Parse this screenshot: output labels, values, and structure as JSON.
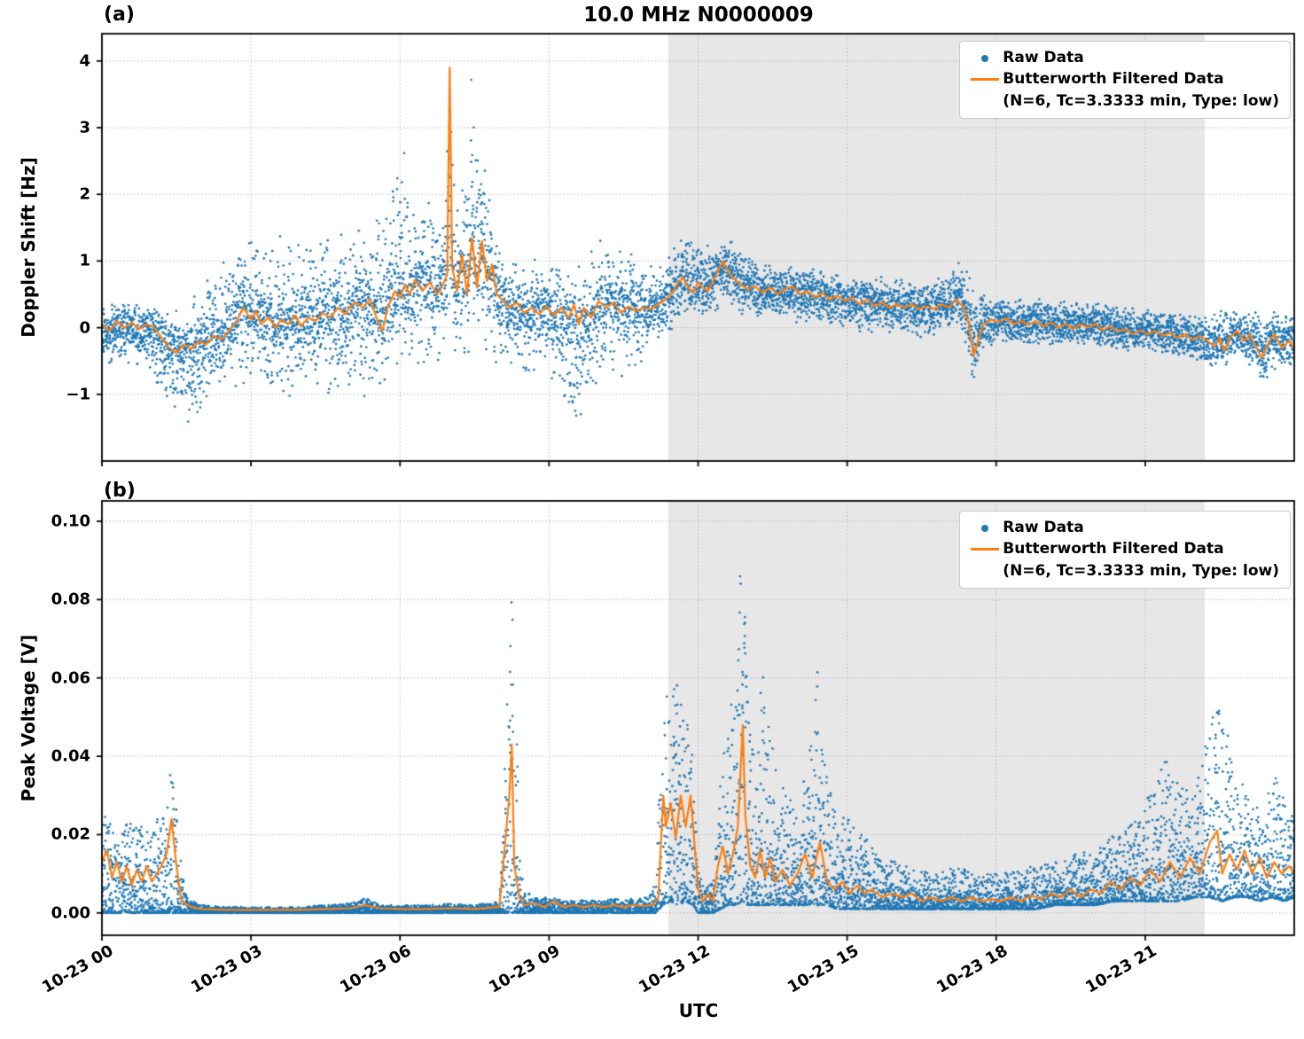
{
  "title": "10.0 MHz N0000009",
  "xlabel": "UTC",
  "legend": {
    "raw": "Raw Data",
    "filtered_1": "Butterworth Filtered Data",
    "filtered_2": "(N=6, Tc=3.3333 min, Type: low)"
  },
  "colors": {
    "raw": "#1f77b4",
    "filtered": "#ff7f0e",
    "shade": "#e7e7e7",
    "grid": "#b5b5b5",
    "frame": "#000000"
  },
  "chart_data": [
    {
      "type": "scatter",
      "panel": "a",
      "tag": "(a)",
      "ylabel": "Doppler Shift [Hz]",
      "xlim": [
        0,
        24
      ],
      "ylim": [
        -2.0,
        4.41
      ],
      "yticks": [
        4,
        3,
        2,
        1,
        0,
        -1
      ],
      "ytick_labels": [
        "4",
        "3",
        "2",
        "1",
        "0",
        "−1"
      ],
      "xticks": [
        0,
        3,
        6,
        9,
        12,
        15,
        18,
        21
      ],
      "xtick_labels": [
        "10-23 00",
        "10-23 03",
        "10-23 06",
        "10-23 09",
        "10-23 12",
        "10-23 15",
        "10-23 18",
        "10-23 21"
      ],
      "shaded_span": [
        11.4,
        22.2
      ],
      "grid": true,
      "legend_position": "upper right",
      "series_names": [
        "Raw Data",
        "Butterworth Filtered Data (N=6, Tc=3.3333 min, Type: low)"
      ],
      "filtered_tv": [
        0,
        0.05,
        0.15,
        -0.05,
        0.3,
        0.1,
        0.45,
        0,
        0.6,
        0.08,
        0.75,
        -0.02,
        0.9,
        0.05,
        1.05,
        0,
        1.2,
        -0.15,
        1.35,
        -0.3,
        1.5,
        -0.38,
        1.65,
        -0.25,
        1.8,
        -0.32,
        1.95,
        -0.2,
        2.1,
        -0.25,
        2.25,
        -0.12,
        2.4,
        -0.18,
        2.55,
        -0.05,
        2.7,
        0.08,
        2.85,
        0.3,
        3,
        0.12,
        3.1,
        0.25,
        3.2,
        0.05,
        3.35,
        0.15,
        3.5,
        0,
        3.6,
        0.12,
        3.75,
        0.05,
        3.9,
        0.18,
        4,
        0.02,
        4.15,
        0.15,
        4.3,
        0.1,
        4.45,
        0.22,
        4.6,
        0.15,
        4.75,
        0.3,
        4.9,
        0.2,
        5,
        0.32,
        5.1,
        0.38,
        5.25,
        0.3,
        5.4,
        0.42,
        5.55,
        0.1,
        5.65,
        -0.05,
        5.75,
        0.3,
        5.9,
        0.55,
        6,
        0.45,
        6.1,
        0.65,
        6.2,
        0.5,
        6.3,
        0.72,
        6.45,
        0.55,
        6.6,
        0.68,
        6.75,
        0.5,
        6.85,
        0.62,
        6.95,
        0.8,
        7,
        3.9,
        7.05,
        0.9,
        7.15,
        0.55,
        7.25,
        1.1,
        7.35,
        0.5,
        7.45,
        1.35,
        7.55,
        0.6,
        7.65,
        1.3,
        7.75,
        0.7,
        7.85,
        0.95,
        7.95,
        0.5,
        8.05,
        0.42,
        8.2,
        0.3,
        8.35,
        0.38,
        8.5,
        0.22,
        8.65,
        0.3,
        8.8,
        0.2,
        8.95,
        0.32,
        9.1,
        0.18,
        9.25,
        0.3,
        9.4,
        0.15,
        9.5,
        0.35,
        9.6,
        0.05,
        9.7,
        0.3,
        9.85,
        0.15,
        10,
        0.4,
        10.15,
        0.3,
        10.3,
        0.38,
        10.45,
        0.22,
        10.6,
        0.32,
        10.75,
        0.25,
        10.9,
        0.3,
        11.05,
        0.28,
        11.2,
        0.35,
        11.35,
        0.42,
        11.5,
        0.55,
        11.6,
        0.68,
        11.7,
        0.75,
        11.8,
        0.6,
        11.9,
        0.52,
        12,
        0.68,
        12.1,
        0.6,
        12.2,
        0.55,
        12.3,
        0.7,
        12.4,
        0.85,
        12.5,
        1,
        12.6,
        0.85,
        12.7,
        0.75,
        12.85,
        0.65,
        13,
        0.58,
        13.15,
        0.62,
        13.3,
        0.52,
        13.45,
        0.6,
        13.6,
        0.5,
        13.75,
        0.58,
        13.9,
        0.62,
        14.05,
        0.5,
        14.2,
        0.55,
        14.35,
        0.45,
        14.5,
        0.52,
        14.65,
        0.42,
        14.8,
        0.48,
        14.95,
        0.4,
        15.1,
        0.45,
        15.25,
        0.35,
        15.4,
        0.42,
        15.55,
        0.32,
        15.7,
        0.38,
        15.85,
        0.3,
        16,
        0.35,
        16.15,
        0.3,
        16.3,
        0.35,
        16.45,
        0.28,
        16.6,
        0.32,
        16.75,
        0.28,
        16.9,
        0.35,
        17.05,
        0.3,
        17.2,
        0.42,
        17.35,
        0.3,
        17.45,
        0.05,
        17.55,
        -0.42,
        17.65,
        -0.15,
        17.75,
        0.05,
        17.9,
        0.12,
        18.05,
        0.08,
        18.2,
        0.14,
        18.35,
        0.05,
        18.5,
        0.1,
        18.65,
        0.04,
        18.8,
        0.1,
        18.95,
        0.02,
        19.1,
        0.08,
        19.25,
        0,
        19.4,
        0.06,
        19.55,
        -0.02,
        19.7,
        0.05,
        19.85,
        0,
        20,
        0.06,
        20.15,
        -0.04,
        20.3,
        0.02,
        20.45,
        -0.06,
        20.6,
        -0.02,
        20.75,
        -0.1,
        20.9,
        -0.04,
        21.05,
        -0.1,
        21.2,
        -0.05,
        21.35,
        -0.12,
        21.5,
        -0.08,
        21.65,
        -0.15,
        21.8,
        -0.1,
        21.95,
        -0.18,
        22.1,
        -0.12,
        22.25,
        -0.2,
        22.4,
        -0.28,
        22.5,
        -0.15,
        22.6,
        -0.35,
        22.7,
        -0.15,
        22.85,
        -0.05,
        23,
        -0.2,
        23.1,
        -0.1,
        23.2,
        -0.25,
        23.35,
        -0.45,
        23.5,
        -0.2,
        23.6,
        -0.1,
        23.75,
        -0.3,
        23.9,
        -0.2,
        24,
        -0.3
      ],
      "raw_envelope_tlh": [
        0,
        -0.7,
        0.35,
        0.4,
        -0.5,
        0.4,
        0.8,
        -0.6,
        0.4,
        1.1,
        -0.9,
        0.35,
        1.4,
        -1.2,
        0.3,
        1.8,
        -1.5,
        0.5,
        2.1,
        -1.1,
        0.8,
        2.5,
        -1,
        1.1,
        2.9,
        -0.9,
        1.5,
        3.3,
        -1,
        1.3,
        3.7,
        -1.1,
        1.5,
        4.1,
        -0.9,
        1.5,
        4.5,
        -1,
        1.4,
        4.9,
        -1.1,
        1.5,
        5.3,
        -1.2,
        1.5,
        5.6,
        -0.9,
        1.7,
        5.9,
        -0.8,
        2.6,
        6.1,
        -0.9,
        2.7,
        6.3,
        -0.8,
        2.2,
        6.6,
        -0.6,
        1.9,
        6.9,
        -0.6,
        2.3,
        7,
        -0.5,
        3.93,
        7.1,
        -0.5,
        2.1,
        7.3,
        -0.6,
        2.5,
        7.45,
        -0.6,
        4.07,
        7.6,
        -0.5,
        3,
        7.8,
        -0.5,
        2.2,
        8,
        -0.7,
        1.4,
        8.2,
        -0.6,
        1.1,
        8.5,
        -0.8,
        1,
        8.8,
        -0.6,
        1.1,
        9.1,
        -0.9,
        1,
        9.4,
        -1.5,
        1.1,
        9.6,
        -1.75,
        1,
        9.8,
        -1.2,
        1.2,
        10,
        -0.8,
        1.3,
        10.2,
        -0.7,
        1.6,
        10.45,
        -0.9,
        1.3,
        10.7,
        -0.6,
        1.1,
        10.95,
        -0.5,
        1,
        11.2,
        -0.3,
        0.9,
        11.45,
        -0.1,
        1.1,
        11.7,
        0.1,
        1.5,
        11.9,
        0,
        1.55,
        12.1,
        0.1,
        1.3,
        12.35,
        0.2,
        1.2,
        12.55,
        0.3,
        1.45,
        12.8,
        0.2,
        1.25,
        13.1,
        0.1,
        1.05,
        13.5,
        0.1,
        0.95,
        13.9,
        0.05,
        0.95,
        14.3,
        0,
        0.9,
        14.7,
        0,
        0.85,
        15.1,
        -0.05,
        0.85,
        15.5,
        -0.1,
        0.8,
        15.9,
        -0.1,
        0.75,
        16.3,
        -0.15,
        0.7,
        16.7,
        -0.2,
        0.75,
        17,
        -0.1,
        0.8,
        17.3,
        0,
        1.1,
        17.5,
        -0.8,
        0.7,
        17.7,
        -0.35,
        0.55,
        18,
        -0.3,
        0.5,
        18.4,
        -0.25,
        0.5,
        18.8,
        -0.3,
        0.45,
        19.2,
        -0.3,
        0.4,
        19.6,
        -0.25,
        0.45,
        20,
        -0.3,
        0.4,
        20.4,
        -0.35,
        0.35,
        20.8,
        -0.35,
        0.3,
        21.2,
        -0.4,
        0.3,
        21.6,
        -0.45,
        0.25,
        22,
        -0.5,
        0.25,
        22.3,
        -0.7,
        0.2,
        22.6,
        -0.45,
        0.3,
        22.9,
        -0.55,
        0.25,
        23.2,
        -0.6,
        0.3,
        23.45,
        -0.85,
        0.25,
        23.7,
        -0.55,
        0.3,
        24,
        -0.65,
        0.2
      ]
    },
    {
      "type": "scatter",
      "panel": "b",
      "tag": "(b)",
      "ylabel": "Peak Voltage [V]",
      "xlim": [
        0,
        24
      ],
      "ylim": [
        -0.0057,
        0.1052
      ],
      "yticks": [
        0.1,
        0.08,
        0.06,
        0.04,
        0.02,
        0.0
      ],
      "ytick_labels": [
        "0.10",
        "0.08",
        "0.06",
        "0.04",
        "0.02",
        "0.00"
      ],
      "xticks": [
        0,
        3,
        6,
        9,
        12,
        15,
        18,
        21
      ],
      "xtick_labels": [
        "10-23 00",
        "10-23 03",
        "10-23 06",
        "10-23 09",
        "10-23 12",
        "10-23 15",
        "10-23 18",
        "10-23 21"
      ],
      "shaded_span": [
        11.4,
        22.2
      ],
      "grid": true,
      "legend_position": "upper right",
      "series_names": [
        "Raw Data",
        "Butterworth Filtered Data (N=6, Tc=3.3333 min, Type: low)"
      ],
      "filtered_tv": [
        0,
        0.013,
        0.1,
        0.016,
        0.2,
        0.009,
        0.3,
        0.013,
        0.4,
        0.008,
        0.5,
        0.012,
        0.6,
        0.007,
        0.7,
        0.011,
        0.8,
        0.008,
        0.9,
        0.012,
        1,
        0.008,
        1.1,
        0.01,
        1.2,
        0.012,
        1.3,
        0.015,
        1.4,
        0.024,
        1.5,
        0.012,
        1.6,
        0.003,
        1.8,
        0.0015,
        2,
        0.001,
        2.5,
        0.0008,
        3,
        0.0008,
        3.5,
        0.0008,
        4,
        0.0008,
        4.5,
        0.001,
        5,
        0.0012,
        5.3,
        0.002,
        5.6,
        0.0012,
        6,
        0.001,
        6.5,
        0.001,
        7,
        0.0012,
        7.5,
        0.001,
        8,
        0.0015,
        8.2,
        0.03,
        8.25,
        0.043,
        8.3,
        0.012,
        8.4,
        0.004,
        8.5,
        0.002,
        8.7,
        0.0025,
        8.9,
        0.0015,
        9.1,
        0.003,
        9.3,
        0.0015,
        9.5,
        0.002,
        9.7,
        0.0015,
        9.9,
        0.002,
        10.1,
        0.0015,
        10.3,
        0.002,
        10.5,
        0.0015,
        10.7,
        0.002,
        10.9,
        0.0018,
        11.1,
        0.002,
        11.2,
        0.004,
        11.3,
        0.03,
        11.35,
        0.022,
        11.45,
        0.028,
        11.55,
        0.019,
        11.65,
        0.03,
        11.75,
        0.022,
        11.85,
        0.03,
        11.95,
        0.014,
        12,
        0.006,
        12.1,
        0.003,
        12.2,
        0.005,
        12.3,
        0.003,
        12.4,
        0.012,
        12.5,
        0.017,
        12.6,
        0.01,
        12.7,
        0.015,
        12.8,
        0.022,
        12.9,
        0.048,
        12.95,
        0.025,
        13.05,
        0.012,
        13.15,
        0.009,
        13.25,
        0.016,
        13.35,
        0.009,
        13.45,
        0.014,
        13.55,
        0.008,
        13.7,
        0.011,
        13.85,
        0.007,
        14,
        0.01,
        14.15,
        0.015,
        14.3,
        0.009,
        14.45,
        0.018,
        14.6,
        0.008,
        14.75,
        0.006,
        14.9,
        0.008,
        15.05,
        0.005,
        15.2,
        0.007,
        15.35,
        0.005,
        15.5,
        0.006,
        15.7,
        0.004,
        15.9,
        0.005,
        16.1,
        0.004,
        16.3,
        0.005,
        16.5,
        0.003,
        16.7,
        0.004,
        16.9,
        0.003,
        17.1,
        0.004,
        17.3,
        0.003,
        17.5,
        0.004,
        17.7,
        0.003,
        17.9,
        0.0035,
        18.1,
        0.003,
        18.3,
        0.004,
        18.5,
        0.003,
        18.7,
        0.0045,
        18.9,
        0.0035,
        19.1,
        0.005,
        19.3,
        0.004,
        19.5,
        0.006,
        19.7,
        0.004,
        19.9,
        0.006,
        20.1,
        0.005,
        20.3,
        0.008,
        20.5,
        0.006,
        20.7,
        0.009,
        20.9,
        0.007,
        21.1,
        0.011,
        21.3,
        0.008,
        21.5,
        0.013,
        21.7,
        0.009,
        21.9,
        0.014,
        22.1,
        0.01,
        22.3,
        0.018,
        22.45,
        0.021,
        22.55,
        0.01,
        22.7,
        0.015,
        22.85,
        0.011,
        23,
        0.016,
        23.15,
        0.01,
        23.3,
        0.014,
        23.45,
        0.009,
        23.6,
        0.013,
        23.75,
        0.01,
        23.9,
        0.012,
        24,
        0.01
      ],
      "raw_envelope_tlh": [
        0,
        0,
        0.026,
        0.3,
        0,
        0.022,
        0.6,
        0,
        0.024,
        0.9,
        0,
        0.022,
        1.2,
        0,
        0.025,
        1.4,
        0,
        0.041,
        1.55,
        0,
        0.018,
        1.7,
        0,
        0.004,
        2,
        0,
        0.002,
        2.5,
        0,
        0.0015,
        3,
        0,
        0.0015,
        3.5,
        0,
        0.0015,
        4,
        0,
        0.0015,
        4.5,
        0,
        0.002,
        5,
        0,
        0.0025,
        5.3,
        0,
        0.004,
        5.6,
        0,
        0.002,
        6,
        0,
        0.002,
        6.5,
        0,
        0.002,
        7,
        0,
        0.0025,
        7.5,
        0,
        0.002,
        8,
        0,
        0.003,
        8.15,
        0,
        0.055,
        8.25,
        0,
        0.082,
        8.35,
        0,
        0.045,
        8.45,
        0,
        0.01,
        8.6,
        0,
        0.005,
        8.9,
        0,
        0.004,
        9.2,
        0,
        0.0035,
        9.5,
        0,
        0.003,
        9.8,
        0,
        0.0035,
        10.1,
        0,
        0.003,
        10.4,
        0,
        0.004,
        10.7,
        0,
        0.0035,
        11,
        0,
        0.004,
        11.15,
        0,
        0.008,
        11.3,
        0.002,
        0.063,
        11.45,
        0.003,
        0.05,
        11.6,
        0.002,
        0.07,
        11.75,
        0.003,
        0.05,
        11.9,
        0.002,
        0.042,
        12,
        0,
        0.012,
        12.15,
        0,
        0.006,
        12.3,
        0,
        0.008,
        12.45,
        0.001,
        0.035,
        12.6,
        0.002,
        0.055,
        12.75,
        0.002,
        0.07,
        12.9,
        0.003,
        0.099,
        13,
        0.002,
        0.055,
        13.15,
        0.002,
        0.038,
        13.3,
        0.002,
        0.065,
        13.45,
        0.002,
        0.048,
        13.6,
        0.002,
        0.035,
        13.8,
        0.002,
        0.03,
        14,
        0.002,
        0.032,
        14.2,
        0.002,
        0.036,
        14.4,
        0.002,
        0.062,
        14.6,
        0.002,
        0.035,
        14.8,
        0.001,
        0.025,
        15,
        0.001,
        0.025,
        15.3,
        0.001,
        0.02,
        15.6,
        0.001,
        0.016,
        16,
        0.001,
        0.013,
        16.4,
        0.001,
        0.011,
        16.8,
        0.001,
        0.01,
        17.2,
        0.001,
        0.012,
        17.6,
        0.001,
        0.01,
        18,
        0.001,
        0.01,
        18.4,
        0.001,
        0.011,
        18.8,
        0.001,
        0.012,
        19.2,
        0.002,
        0.013,
        19.6,
        0.002,
        0.015,
        20,
        0.002,
        0.017,
        20.4,
        0.003,
        0.02,
        20.8,
        0.003,
        0.024,
        21.1,
        0.003,
        0.031,
        21.4,
        0.003,
        0.04,
        21.7,
        0.003,
        0.032,
        22,
        0.004,
        0.031,
        22.3,
        0.004,
        0.048,
        22.55,
        0.003,
        0.056,
        22.8,
        0.004,
        0.036,
        23.05,
        0.004,
        0.031,
        23.3,
        0.003,
        0.026,
        23.55,
        0.004,
        0.036,
        23.8,
        0.003,
        0.031,
        24,
        0.004,
        0.026
      ]
    }
  ]
}
